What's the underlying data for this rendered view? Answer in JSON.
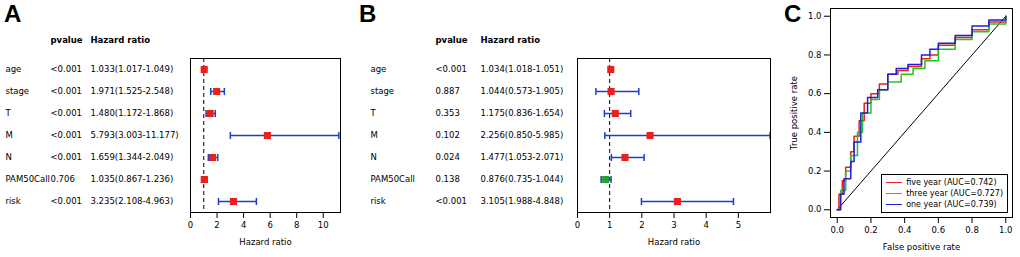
{
  "chart_data": [
    {
      "type": "forest",
      "title": "A",
      "columns": [
        "pvalue",
        "Hazard ratio"
      ],
      "x_label": "Hazard ratio",
      "reference": 1,
      "xlim": [
        0,
        11.3
      ],
      "xticks": [
        0,
        2,
        4,
        6,
        8,
        10
      ],
      "categories": [
        "age",
        "stage",
        "T",
        "M",
        "N",
        "PAM50Call",
        "risk"
      ],
      "pvalues": [
        "<0.001",
        "<0.001",
        "<0.001",
        "<0.001",
        "<0.001",
        "0.706",
        "<0.001"
      ],
      "values": [
        1.033,
        1.971,
        1.48,
        5.793,
        1.659,
        1.035,
        3.235
      ],
      "lower": [
        1.017,
        1.525,
        1.172,
        3.003,
        1.344,
        0.867,
        2.108
      ],
      "upper": [
        1.049,
        2.548,
        1.868,
        11.177,
        2.049,
        1.236,
        4.963
      ],
      "value_labels": [
        "1.033(1.017-1.049)",
        "1.971(1.525-2.548)",
        "1.480(1.172-1.868)",
        "5.793(3.003-11.177)",
        "1.659(1.344-2.049)",
        "1.035(0.867-1.236)",
        "3.235(2.108-4.963)"
      ],
      "colors": [
        "#e8211d",
        "#e8211d",
        "#e8211d",
        "#e8211d",
        "#e8211d",
        "#e8211d",
        "#e8211d"
      ],
      "error_color": "#1f3fbf"
    },
    {
      "type": "forest",
      "title": "B",
      "columns": [
        "pvalue",
        "Hazard ratio"
      ],
      "x_label": "Hazard ratio",
      "reference": 1,
      "xlim": [
        0,
        6
      ],
      "xticks": [
        0,
        1,
        2,
        3,
        4,
        5
      ],
      "categories": [
        "age",
        "stage",
        "T",
        "M",
        "N",
        "PAM50Call",
        "risk"
      ],
      "pvalues": [
        "<0.001",
        "0.887",
        "0.353",
        "0.102",
        "0.024",
        "0.138",
        "<0.001"
      ],
      "values": [
        1.034,
        1.044,
        1.175,
        2.256,
        1.477,
        0.876,
        3.105
      ],
      "lower": [
        1.018,
        0.573,
        0.836,
        0.85,
        1.053,
        0.735,
        1.988
      ],
      "upper": [
        1.051,
        1.905,
        1.654,
        5.985,
        2.071,
        1.044,
        4.848
      ],
      "value_labels": [
        "1.034(1.018-1.051)",
        "1.044(0.573-1.905)",
        "1.175(0.836-1.654)",
        "2.256(0.850-5.985)",
        "1.477(1.053-2.071)",
        "0.876(0.735-1.044)",
        "3.105(1.988-4.848)"
      ],
      "colors": [
        "#e8211d",
        "#e8211d",
        "#e8211d",
        "#e8211d",
        "#e8211d",
        "#2ca02c",
        "#e8211d"
      ],
      "error_color": "#1f3fbf"
    },
    {
      "type": "line",
      "title": "C",
      "x_label": "False positive rate",
      "y_label": "True positive rate",
      "xlim": [
        -0.04,
        1.04
      ],
      "ylim": [
        -0.04,
        1.04
      ],
      "xticks": [
        {
          "value": 0,
          "label": "0.0"
        },
        {
          "value": 0.2,
          "label": "0.2"
        },
        {
          "value": 0.4,
          "label": "0.4"
        },
        {
          "value": 0.6,
          "label": "0.6"
        },
        {
          "value": 0.8,
          "label": "0.8"
        },
        {
          "value": 1,
          "label": "1.0"
        }
      ],
      "yticks": [
        {
          "value": 0,
          "label": "0.0"
        },
        {
          "value": 0.2,
          "label": "0.2"
        },
        {
          "value": 0.4,
          "label": "0.4"
        },
        {
          "value": 0.6,
          "label": "0.6"
        },
        {
          "value": 0.8,
          "label": "0.8"
        },
        {
          "value": 1,
          "label": "1.0"
        }
      ],
      "legend": "bottom-right",
      "reference_line": {
        "x": [
          0,
          1
        ],
        "values": [
          0,
          1
        ],
        "color": "#000000"
      },
      "series": [
        {
          "name": "five year (AUC=0.742)",
          "color": "#e8211d",
          "x": [
            0,
            0.01,
            0.03,
            0.05,
            0.08,
            0.1,
            0.13,
            0.16,
            0.2,
            0.25,
            0.3,
            0.36,
            0.42,
            0.5,
            0.55,
            0.6,
            0.7,
            0.8,
            0.9,
            1
          ],
          "values": [
            0,
            0.08,
            0.15,
            0.22,
            0.3,
            0.38,
            0.46,
            0.55,
            0.6,
            0.65,
            0.7,
            0.72,
            0.74,
            0.78,
            0.8,
            0.85,
            0.89,
            0.93,
            0.97,
            1
          ]
        },
        {
          "name": "three year (AUC=0.727)",
          "color": "#22c422",
          "x": [
            0,
            0.02,
            0.05,
            0.08,
            0.12,
            0.15,
            0.2,
            0.25,
            0.3,
            0.38,
            0.45,
            0.52,
            0.6,
            0.7,
            0.8,
            0.9,
            1
          ],
          "values": [
            0,
            0.1,
            0.2,
            0.28,
            0.4,
            0.5,
            0.57,
            0.62,
            0.66,
            0.7,
            0.73,
            0.77,
            0.83,
            0.88,
            0.92,
            0.96,
            1
          ]
        },
        {
          "name": "one year (AUC=0.739)",
          "color": "#1f1fd6",
          "x": [
            0,
            0.02,
            0.04,
            0.08,
            0.1,
            0.14,
            0.18,
            0.24,
            0.3,
            0.35,
            0.42,
            0.5,
            0.55,
            0.6,
            0.7,
            0.8,
            0.9,
            1
          ],
          "values": [
            0,
            0.08,
            0.16,
            0.25,
            0.35,
            0.5,
            0.58,
            0.62,
            0.7,
            0.73,
            0.75,
            0.8,
            0.83,
            0.86,
            0.9,
            0.95,
            0.98,
            1
          ]
        }
      ]
    }
  ]
}
